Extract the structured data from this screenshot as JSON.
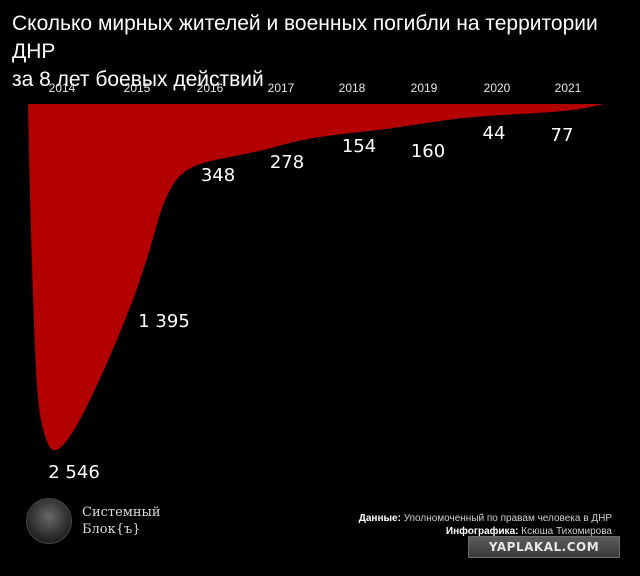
{
  "title_line1": "Сколько мирных жителей и военных погибли на территории ДНР",
  "title_line2": "за 8 лет боевых действий",
  "chart_data": {
    "type": "area",
    "title": "Сколько мирных жителей и военных погибли на территории ДНР за 8 лет боевых действий",
    "categories": [
      "2014",
      "2015",
      "2016",
      "2017",
      "2018",
      "2019",
      "2020",
      "2021"
    ],
    "value_labels": [
      "2 546",
      "1 395",
      "348",
      "278",
      "154",
      "160",
      "44",
      "77"
    ],
    "values": [
      2546,
      1395,
      348,
      278,
      154,
      160,
      44,
      77
    ],
    "orientation": "values grow downward from the top axis",
    "fill_color": "#b30000",
    "background": "#000000",
    "grid": false,
    "legend": "none"
  },
  "brand": {
    "line1": "Системный",
    "line2": "Блок{ъ}"
  },
  "credits": {
    "data_label": "Данные:",
    "data_value": "Уполномоченный по правам человека в ДНР",
    "graphics_label": "Инфографика:",
    "graphics_value": "Ксюша Тихомирова"
  },
  "watermark": "YAPLAKAL.COM"
}
